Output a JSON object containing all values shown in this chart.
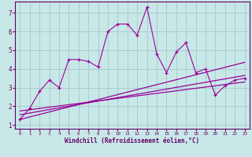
{
  "title": "",
  "xlabel": "Windchill (Refroidissement éolien,°C)",
  "ylabel": "",
  "bg_color": "#c8e8e8",
  "grid_color": "#aacccc",
  "line_color": "#990099",
  "xlim": [
    -0.5,
    23.5
  ],
  "ylim": [
    0.8,
    7.6
  ],
  "xticks": [
    0,
    1,
    2,
    3,
    4,
    5,
    6,
    7,
    8,
    9,
    10,
    11,
    12,
    13,
    14,
    15,
    16,
    17,
    18,
    19,
    20,
    21,
    22,
    23
  ],
  "yticks": [
    1,
    2,
    3,
    4,
    5,
    6,
    7
  ],
  "scatter_x": [
    0,
    1,
    2,
    3,
    4,
    5,
    6,
    7,
    8,
    9,
    10,
    11,
    12,
    13,
    14,
    15,
    16,
    17,
    18,
    19,
    20,
    21,
    22,
    23
  ],
  "scatter_y": [
    1.3,
    1.9,
    2.8,
    3.4,
    3.0,
    4.5,
    4.5,
    4.4,
    4.1,
    6.0,
    6.4,
    6.4,
    5.8,
    7.3,
    4.8,
    3.8,
    4.9,
    5.4,
    3.8,
    4.0,
    2.6,
    3.1,
    3.4,
    3.5
  ],
  "line1_x": [
    0,
    23
  ],
  "line1_y": [
    1.75,
    3.3
  ],
  "line2_x": [
    0,
    23
  ],
  "line2_y": [
    1.55,
    3.65
  ],
  "line3_x": [
    0,
    23
  ],
  "line3_y": [
    1.3,
    4.35
  ],
  "xlabel_color": "#660066",
  "tick_color": "#660066",
  "spine_color": "#660066"
}
